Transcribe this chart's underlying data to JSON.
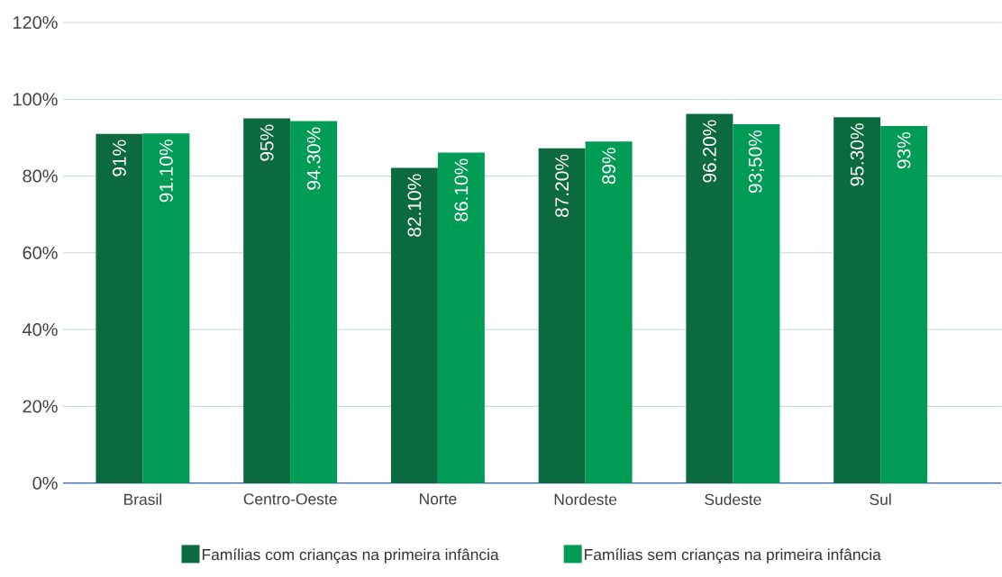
{
  "chart_data": {
    "type": "bar",
    "categories": [
      "Brasil",
      "Centro-Oeste",
      "Norte",
      "Nordeste",
      "Sudeste",
      "Sul"
    ],
    "series": [
      {
        "name": "Famílias com crianças na primeira infância",
        "color": "#0b6b3f",
        "values": [
          91,
          95,
          82.1,
          87.2,
          96.2,
          95.3
        ],
        "value_labels": [
          "91%",
          "95%",
          "82.10%",
          "87.20%",
          "96.20%",
          "95.30%"
        ]
      },
      {
        "name": "Famílias sem crianças na primeira infância",
        "color": "#009b55",
        "values": [
          91.1,
          94.3,
          86.1,
          89,
          93.5,
          93
        ],
        "value_labels": [
          "91.10%",
          "94.30%",
          "86.10%",
          "89%",
          "93;50%",
          "93%"
        ]
      }
    ],
    "ylim": [
      0,
      120
    ],
    "yticks": [
      {
        "value": 0,
        "label": "0%"
      },
      {
        "value": 20,
        "label": "20%"
      },
      {
        "value": 40,
        "label": "40%"
      },
      {
        "value": 60,
        "label": "60%"
      },
      {
        "value": 80,
        "label": "80%"
      },
      {
        "value": 100,
        "label": "100%"
      },
      {
        "value": 120,
        "label": "120%"
      }
    ],
    "grid": "y",
    "legend": "bottom"
  }
}
